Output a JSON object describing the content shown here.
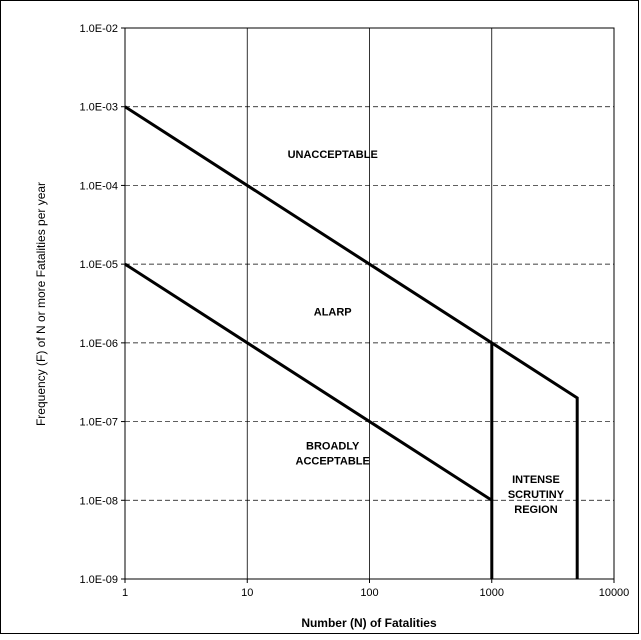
{
  "chart_data": {
    "type": "line",
    "title": "",
    "xlabel": "Number (N) of Fatalities",
    "ylabel": "Frequency (F) of N or more Fatalities per year",
    "x_scale": "log",
    "y_scale": "log",
    "xlim": [
      1,
      10000
    ],
    "ylim": [
      1e-09,
      0.01
    ],
    "grid": true,
    "x_ticks": [
      "1",
      "10",
      "100",
      "1000",
      "10000"
    ],
    "y_ticks": [
      "1.0E-09",
      "1.0E-08",
      "1.0E-07",
      "1.0E-06",
      "1.0E-05",
      "1.0E-04",
      "1.0E-03",
      "1.0E-02"
    ],
    "series": [
      {
        "points": [
          [
            1,
            0.001
          ],
          [
            1000,
            1e-06
          ],
          [
            5000,
            2e-07
          ],
          [
            5000,
            1e-09
          ]
        ]
      },
      {
        "points": [
          [
            1,
            1e-05
          ],
          [
            1000,
            1e-08
          ],
          [
            1000,
            1e-09
          ]
        ]
      },
      {
        "points": [
          [
            1000,
            1e-06
          ],
          [
            1000,
            1e-08
          ]
        ]
      }
    ],
    "annotations": [
      {
        "lines": [
          "UNACCEPTABLE"
        ],
        "x": 50,
        "y": 0.00025
      },
      {
        "lines": [
          "ALARP"
        ],
        "x": 50,
        "y": 2.5e-06
      },
      {
        "lines": [
          "BROADLY",
          "ACCEPTABLE"
        ],
        "x": 50,
        "y": 4e-08
      },
      {
        "lines": [
          "INTENSE",
          "SCRUTINY",
          "REGION"
        ],
        "x": 2300,
        "y": 1.2e-08
      }
    ]
  }
}
